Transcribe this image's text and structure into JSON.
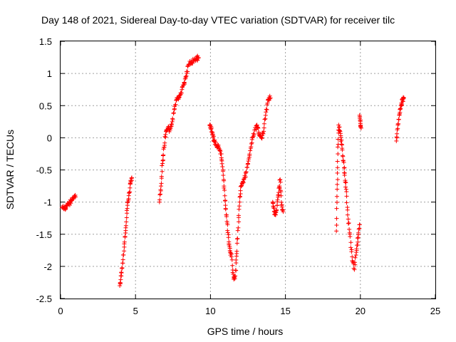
{
  "chart_data": {
    "type": "scatter",
    "title": "Day 148 of 2021, Sidereal Day-to-day VTEC variation (SDTVAR) for receiver tilc",
    "xlabel": "GPS time / hours",
    "ylabel": "SDTVAR / TECUs",
    "xlim": [
      0,
      25
    ],
    "ylim": [
      -2.5,
      1.5
    ],
    "xticks": [
      0,
      5,
      10,
      15,
      20,
      25
    ],
    "yticks": [
      -2.5,
      -2,
      -1.5,
      -1,
      -0.5,
      0,
      0.5,
      1,
      1.5
    ],
    "xtick_labels": [
      "0",
      "5",
      "10",
      "15",
      "20",
      "25"
    ],
    "ytick_labels": [
      "-2.5",
      "-2",
      "-1.5",
      "-1",
      "-0.5",
      "0",
      "0.5",
      "1",
      "1.5"
    ],
    "grid": true,
    "marker": "+",
    "color": "#ff0000",
    "segments": [
      [
        [
          0.1,
          -1.08
        ],
        [
          0.25,
          -1.1
        ],
        [
          0.4,
          -1.07
        ],
        [
          0.55,
          -1.03
        ],
        [
          0.7,
          -0.98
        ],
        [
          0.85,
          -0.95
        ],
        [
          1.0,
          -0.92
        ]
      ],
      [
        [
          3.95,
          -2.3
        ],
        [
          4.05,
          -2.15
        ],
        [
          4.15,
          -1.95
        ],
        [
          4.25,
          -1.65
        ],
        [
          4.35,
          -1.4
        ],
        [
          4.45,
          -1.1
        ],
        [
          4.55,
          -0.9
        ],
        [
          4.65,
          -0.72
        ],
        [
          4.75,
          -0.62
        ]
      ],
      [
        [
          6.6,
          -1.0
        ],
        [
          6.7,
          -0.75
        ],
        [
          6.8,
          -0.4
        ],
        [
          6.9,
          -0.15
        ],
        [
          7.0,
          0.05
        ],
        [
          7.15,
          0.15
        ],
        [
          7.3,
          0.12
        ],
        [
          7.45,
          0.25
        ],
        [
          7.6,
          0.45
        ],
        [
          7.75,
          0.6
        ],
        [
          7.9,
          0.65
        ],
        [
          8.05,
          0.7
        ],
        [
          8.2,
          0.82
        ],
        [
          8.35,
          0.95
        ],
        [
          8.5,
          1.12
        ],
        [
          8.7,
          1.18
        ],
        [
          8.9,
          1.2
        ],
        [
          9.05,
          1.23
        ],
        [
          9.2,
          1.25
        ]
      ],
      [
        [
          9.95,
          0.2
        ],
        [
          10.05,
          0.15
        ],
        [
          10.15,
          0.05
        ],
        [
          10.25,
          -0.05
        ],
        [
          10.4,
          -0.12
        ],
        [
          10.55,
          -0.15
        ],
        [
          10.7,
          -0.25
        ],
        [
          10.8,
          -0.45
        ],
        [
          10.9,
          -0.75
        ],
        [
          11.0,
          -1.05
        ],
        [
          11.1,
          -1.3
        ],
        [
          11.2,
          -1.55
        ],
        [
          11.3,
          -1.75
        ],
        [
          11.4,
          -1.85
        ],
        [
          11.55,
          -2.2
        ],
        [
          11.65,
          -2.15
        ],
        [
          11.75,
          -1.8
        ],
        [
          11.85,
          -1.4
        ],
        [
          11.95,
          -1.0
        ],
        [
          12.05,
          -0.75
        ],
        [
          12.2,
          -0.7
        ],
        [
          12.35,
          -0.55
        ],
        [
          12.5,
          -0.4
        ],
        [
          12.65,
          -0.2
        ],
        [
          12.8,
          0.0
        ],
        [
          12.95,
          0.12
        ],
        [
          13.1,
          0.2
        ],
        [
          13.25,
          0.05
        ],
        [
          13.4,
          0.0
        ],
        [
          13.55,
          0.1
        ],
        [
          13.7,
          0.4
        ],
        [
          13.85,
          0.6
        ],
        [
          14.0,
          0.62
        ]
      ],
      [
        [
          14.15,
          -1.0
        ],
        [
          14.25,
          -1.15
        ],
        [
          14.35,
          -1.2
        ],
        [
          14.45,
          -1.05
        ],
        [
          14.55,
          -0.85
        ],
        [
          14.65,
          -0.65
        ],
        [
          14.75,
          -1.05
        ],
        [
          14.85,
          -1.15
        ]
      ],
      [
        [
          18.4,
          -1.45
        ],
        [
          18.45,
          -0.8
        ],
        [
          18.5,
          -0.25
        ],
        [
          18.55,
          0.2
        ],
        [
          18.65,
          0.1
        ],
        [
          18.75,
          -0.1
        ],
        [
          18.85,
          -0.35
        ],
        [
          18.95,
          -0.55
        ],
        [
          19.05,
          -0.8
        ],
        [
          19.15,
          -1.2
        ],
        [
          19.3,
          -1.5
        ],
        [
          19.45,
          -1.85
        ],
        [
          19.6,
          -2.05
        ],
        [
          19.75,
          -1.75
        ],
        [
          19.85,
          -1.55
        ],
        [
          19.95,
          -1.35
        ]
      ],
      [
        [
          19.95,
          0.35
        ],
        [
          20.0,
          0.25
        ],
        [
          20.05,
          0.15
        ]
      ],
      [
        [
          22.4,
          -0.05
        ],
        [
          22.5,
          0.2
        ],
        [
          22.6,
          0.35
        ],
        [
          22.7,
          0.5
        ],
        [
          22.8,
          0.58
        ],
        [
          22.9,
          0.62
        ]
      ]
    ]
  }
}
